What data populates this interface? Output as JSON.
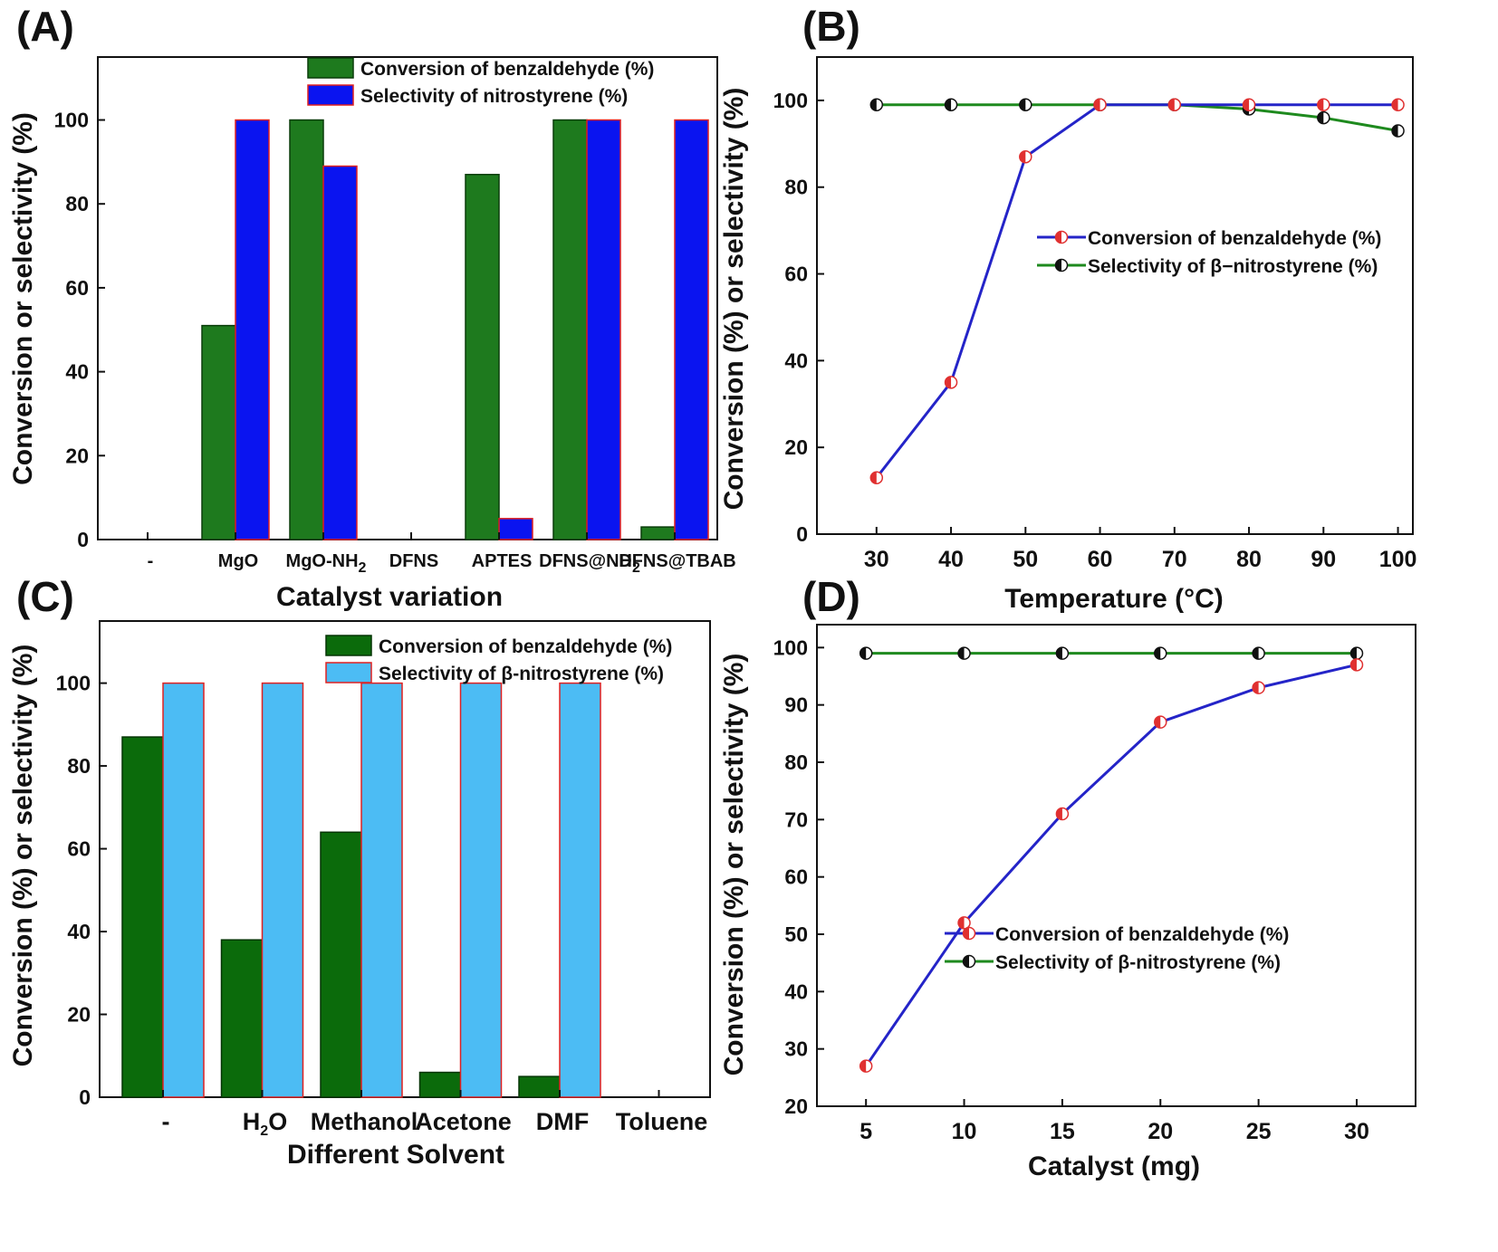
{
  "panels": [
    {
      "label": "(A)",
      "chart_data": {
        "type": "bar",
        "categories": [
          "-",
          "MgO",
          "MgO-NH₂",
          "DFNS",
          "APTES",
          "DFNS@NH₂",
          "DFNS@TBAB"
        ],
        "series": [
          {
            "name": "Conversion of benzaldehyde (%)",
            "values": [
              0,
              51,
              100,
              0,
              87,
              100,
              3
            ],
            "color": "#1e7a1e",
            "stroke": "#0a3d0a"
          },
          {
            "name": "Selectivity of nitrostyrene (%)",
            "values": [
              0,
              100,
              89,
              0,
              5,
              100,
              100
            ],
            "color": "#0a14f0",
            "stroke": "#e02020"
          }
        ],
        "xlabel": "Catalyst variation",
        "ylabel": "Conversion or selectivity (%)",
        "ylim": [
          0,
          115
        ],
        "yticks": [
          0,
          20,
          40,
          60,
          80,
          100
        ],
        "legend": "top-right"
      }
    },
    {
      "label": "(B)",
      "chart_data": {
        "type": "line",
        "x": [
          30,
          40,
          50,
          60,
          70,
          80,
          90,
          100
        ],
        "series": [
          {
            "name": "Conversion of benzaldehyde (%)",
            "values": [
              13,
              35,
              87,
              99,
              99,
              99,
              99,
              99
            ],
            "color": "#2424c8",
            "marker": "#e03030"
          },
          {
            "name": "Selectivity of β−nitrostyrene (%)",
            "values": [
              99,
              99,
              99,
              99,
              99,
              98,
              96,
              93
            ],
            "color": "#1e8a1e",
            "marker": "#111111"
          }
        ],
        "xlabel": "Temperature (°C)",
        "ylabel": "Conversion (%) or selectivity (%)",
        "xlim": [
          22,
          102
        ],
        "ylim": [
          0,
          110
        ],
        "xticks": [
          30,
          40,
          50,
          60,
          70,
          80,
          90,
          100
        ],
        "yticks": [
          0,
          20,
          40,
          60,
          80,
          100
        ],
        "legend": "center-right"
      }
    },
    {
      "label": "(C)",
      "chart_data": {
        "type": "bar",
        "categories": [
          "-",
          "H₂O",
          "Methanol",
          "Acetone",
          "DMF",
          "Toluene"
        ],
        "series": [
          {
            "name": "Conversion of benzaldehyde (%)",
            "values": [
              87,
              38,
              64,
              6,
              5,
              0
            ],
            "color": "#0b6b0b",
            "stroke": "#053505"
          },
          {
            "name": "Selectivity of β-nitrostyrene (%)",
            "values": [
              100,
              100,
              100,
              100,
              100,
              0
            ],
            "color": "#4cbcf4",
            "stroke": "#e02020"
          }
        ],
        "xlabel": "Different Solvent",
        "ylabel": "Conversion (%) or selectivity (%)",
        "ylim": [
          0,
          115
        ],
        "yticks": [
          0,
          20,
          40,
          60,
          80,
          100
        ],
        "legend": "top-right"
      }
    },
    {
      "label": "(D)",
      "chart_data": {
        "type": "line",
        "x": [
          5,
          10,
          15,
          20,
          25,
          30
        ],
        "series": [
          {
            "name": "Conversion of benzaldehyde (%)",
            "values": [
              27,
              52,
              71,
              87,
              93,
              97
            ],
            "color": "#2424c8",
            "marker": "#e03030"
          },
          {
            "name": "Selectivity of β-nitrostyrene (%)",
            "values": [
              99,
              99,
              99,
              99,
              99,
              99
            ],
            "color": "#1e8a1e",
            "marker": "#111111"
          }
        ],
        "xlabel": "Catalyst (mg)",
        "ylabel": "Conversion (%) or selectivity (%)",
        "xlim": [
          2.5,
          33
        ],
        "ylim": [
          20,
          104
        ],
        "xticks": [
          5,
          10,
          15,
          20,
          25,
          30
        ],
        "yticks": [
          20,
          30,
          40,
          50,
          60,
          70,
          80,
          90,
          100
        ],
        "legend": "bottom-right"
      }
    }
  ]
}
